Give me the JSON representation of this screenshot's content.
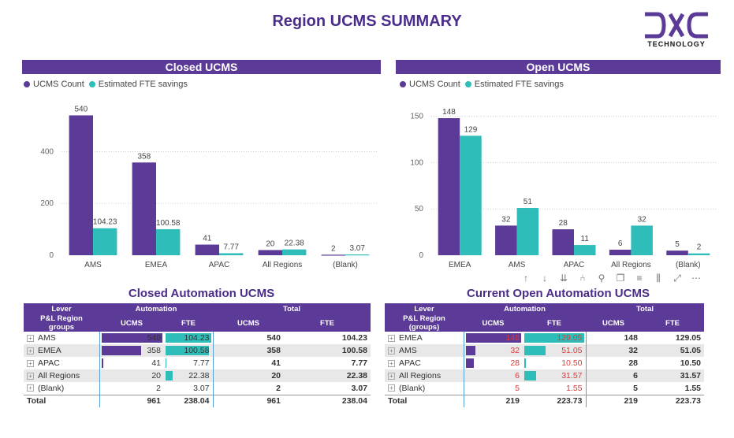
{
  "title": "Region UCMS SUMMARY",
  "logo": {
    "text": "TECHNOLOGY",
    "mark": "DXC"
  },
  "colors": {
    "purple": "#5b3a98",
    "teal": "#2ebdb8",
    "header": "#5b3a98"
  },
  "legend": {
    "s1": "UCMS Count",
    "s2": "Estimated FTE savings"
  },
  "closed_panel": {
    "title": "Closed UCMS"
  },
  "open_panel": {
    "title": "Open UCMS"
  },
  "chart_data": [
    {
      "type": "bar",
      "title": "Closed UCMS",
      "categories": [
        "AMS",
        "EMEA",
        "APAC",
        "All Regions",
        "(Blank)"
      ],
      "series": [
        {
          "name": "UCMS Count",
          "values": [
            540,
            358,
            41,
            20,
            2
          ],
          "labels": [
            "540",
            "358",
            "41",
            "20",
            "2"
          ]
        },
        {
          "name": "Estimated FTE savings",
          "values": [
            104.23,
            100.58,
            7.77,
            22.38,
            3.07
          ],
          "labels": [
            "104.23",
            "100.58",
            "7.77",
            "22.38",
            "3.07"
          ]
        }
      ],
      "yticks": [
        0,
        200,
        400
      ],
      "ylim": [
        0,
        590
      ]
    },
    {
      "type": "bar",
      "title": "Open UCMS",
      "categories": [
        "EMEA",
        "AMS",
        "APAC",
        "All Regions",
        "(Blank)"
      ],
      "series": [
        {
          "name": "UCMS Count",
          "values": [
            148,
            32,
            28,
            6,
            5
          ],
          "labels": [
            "148",
            "32",
            "28",
            "6",
            "5"
          ]
        },
        {
          "name": "Estimated FTE savings",
          "values": [
            129,
            51,
            11,
            32,
            2
          ],
          "labels": [
            "129",
            "51",
            "11",
            "32",
            "2"
          ]
        }
      ],
      "yticks": [
        0,
        50,
        100,
        150
      ],
      "ylim": [
        0,
        165
      ]
    }
  ],
  "closed_table": {
    "title": "Closed Automation UCMS",
    "header1": {
      "lever": "Lever",
      "automation": "Automation",
      "total": "Total"
    },
    "header2": {
      "group": "P&L Region groups",
      "ucms": "UCMS",
      "fte": "FTE",
      "tucms": "UCMS",
      "tfte": "FTE"
    },
    "rows": [
      {
        "region": "AMS",
        "ucms": "540",
        "fte": "104.23",
        "tucms": "540",
        "tfte": "104.23",
        "ucms_frac": 1.0,
        "fte_frac": 1.0
      },
      {
        "region": "EMEA",
        "ucms": "358",
        "fte": "100.58",
        "tucms": "358",
        "tfte": "100.58",
        "ucms_frac": 0.663,
        "fte_frac": 0.965
      },
      {
        "region": "APAC",
        "ucms": "41",
        "fte": "7.77",
        "tucms": "41",
        "tfte": "7.77",
        "ucms_frac": 0.076,
        "fte_frac": 0.075
      },
      {
        "region": "All Regions",
        "ucms": "20",
        "fte": "22.38",
        "tucms": "20",
        "tfte": "22.38",
        "ucms_frac": 0.037,
        "fte_frac": 0.215
      },
      {
        "region": "(Blank)",
        "ucms": "2",
        "fte": "3.07",
        "tucms": "2",
        "tfte": "3.07",
        "ucms_frac": 0.004,
        "fte_frac": 0.029
      }
    ],
    "total": {
      "label": "Total",
      "ucms": "961",
      "fte": "238.04",
      "tucms": "961",
      "tfte": "238.04"
    }
  },
  "open_table": {
    "title": "Current Open Automation UCMS",
    "header1": {
      "lever": "Lever",
      "automation": "Automation",
      "total": "Total"
    },
    "header2": {
      "group": "P&L Region (groups)",
      "ucms": "UCMS",
      "fte": "FTE",
      "tucms": "UCMS",
      "tfte": "FTE"
    },
    "rows": [
      {
        "region": "EMEA",
        "ucms": "148",
        "fte": "129.05",
        "tucms": "148",
        "tfte": "129.05",
        "ucms_frac": 1.0,
        "fte_frac": 1.0
      },
      {
        "region": "AMS",
        "ucms": "32",
        "fte": "51.05",
        "tucms": "32",
        "tfte": "51.05",
        "ucms_frac": 0.216,
        "fte_frac": 0.396
      },
      {
        "region": "APAC",
        "ucms": "28",
        "fte": "10.50",
        "tucms": "28",
        "tfte": "10.50",
        "ucms_frac": 0.189,
        "fte_frac": 0.081
      },
      {
        "region": "All Regions",
        "ucms": "6",
        "fte": "31.57",
        "tucms": "6",
        "tfte": "31.57",
        "ucms_frac": 0.041,
        "fte_frac": 0.245
      },
      {
        "region": "(Blank)",
        "ucms": "5",
        "fte": "1.55",
        "tucms": "5",
        "tfte": "1.55",
        "ucms_frac": 0.034,
        "fte_frac": 0.012
      }
    ],
    "total": {
      "label": "Total",
      "ucms": "219",
      "fte": "223.73",
      "tucms": "219",
      "tfte": "223.73"
    }
  },
  "toolbar": [
    "arrow-up-icon",
    "arrow-down-icon",
    "double-arrow-down-icon",
    "expand-hierarchy-icon",
    "pin-icon",
    "copy-icon",
    "filter-icon",
    "format-icon",
    "focus-mode-icon",
    "more-options-icon"
  ]
}
